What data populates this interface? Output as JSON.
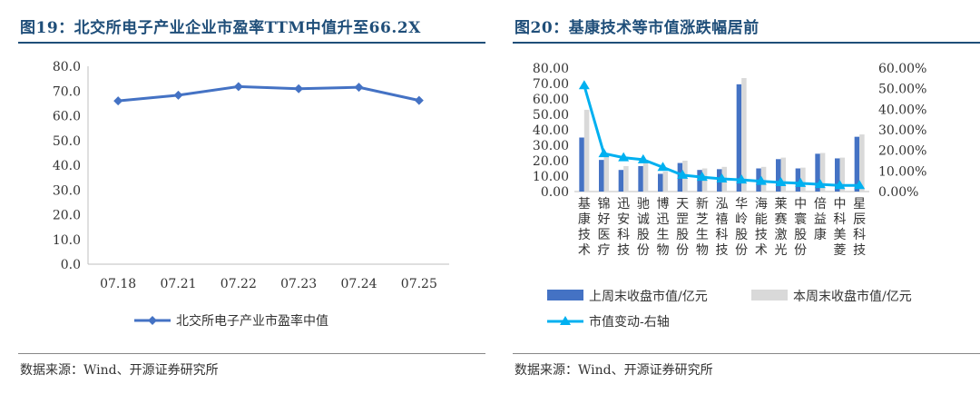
{
  "panels": {
    "left": {
      "title": "图19：北交所电子产业企业市盈率TTM中值升至66.2X",
      "source": "数据来源：Wind、开源证券研究所"
    },
    "right": {
      "title": "图20：基康技术等市值涨跌幅居前",
      "source": "数据来源：Wind、开源证券研究所"
    }
  },
  "colors": {
    "title": "#1f4e79",
    "line1": "#4472c4",
    "bar_last_week": "#4472c4",
    "bar_this_week": "#d9d9d9",
    "line2": "#00b0f0"
  },
  "chart_data": [
    {
      "type": "line",
      "title": "",
      "x": [
        "07.18",
        "07.21",
        "07.22",
        "07.23",
        "07.24",
        "07.25"
      ],
      "series": [
        {
          "name": "北交所电子产业市盈率中值",
          "values": [
            66.0,
            68.3,
            71.8,
            70.9,
            71.5,
            66.2
          ]
        }
      ],
      "ylim": [
        0,
        80
      ],
      "yticks": [
        "0.0",
        "10.0",
        "20.0",
        "30.0",
        "40.0",
        "50.0",
        "60.0",
        "70.0",
        "80.0"
      ],
      "legend_position": "bottom",
      "grid": false
    },
    {
      "type": "bar",
      "title": "",
      "categories": [
        "基康技术",
        "锦好医疗",
        "迅安科技",
        "驰诚股份",
        "博迅生物",
        "天罡股份",
        "新芝生物",
        "泓禧科技",
        "华岭股份",
        "海能技术",
        "莱赛激光",
        "中寰股份",
        "倍益康",
        "中科美菱",
        "星辰科技"
      ],
      "series": [
        {
          "name": "上周末收盘市值/亿元",
          "type": "bar",
          "axis": "left",
          "values": [
            35.0,
            20.5,
            14.0,
            16.5,
            11.5,
            18.5,
            14.0,
            14.5,
            69.5,
            15.0,
            21.0,
            15.0,
            24.5,
            21.5,
            35.5
          ]
        },
        {
          "name": "本周末收盘市值/亿元",
          "type": "bar",
          "axis": "left",
          "values": [
            53.0,
            24.0,
            16.5,
            19.0,
            13.0,
            20.0,
            15.0,
            16.0,
            73.5,
            16.0,
            22.0,
            15.5,
            25.0,
            22.0,
            37.0
          ]
        },
        {
          "name": "市值变动-右轴",
          "type": "line",
          "axis": "right",
          "values": [
            51.5,
            18.5,
            16.5,
            15.5,
            11.8,
            8.0,
            7.0,
            6.2,
            5.7,
            5.0,
            4.4,
            4.0,
            3.5,
            3.0,
            3.0
          ]
        }
      ],
      "ylim_left": [
        0,
        80
      ],
      "ylim_right": [
        0,
        60
      ],
      "yticks_left": [
        "0.00",
        "10.00",
        "20.00",
        "30.00",
        "40.00",
        "50.00",
        "60.00",
        "70.00",
        "80.00"
      ],
      "yticks_right": [
        "0.00%",
        "10.00%",
        "20.00%",
        "30.00%",
        "40.00%",
        "50.00%",
        "60.00%"
      ],
      "legend_position": "bottom",
      "grid": false
    }
  ]
}
